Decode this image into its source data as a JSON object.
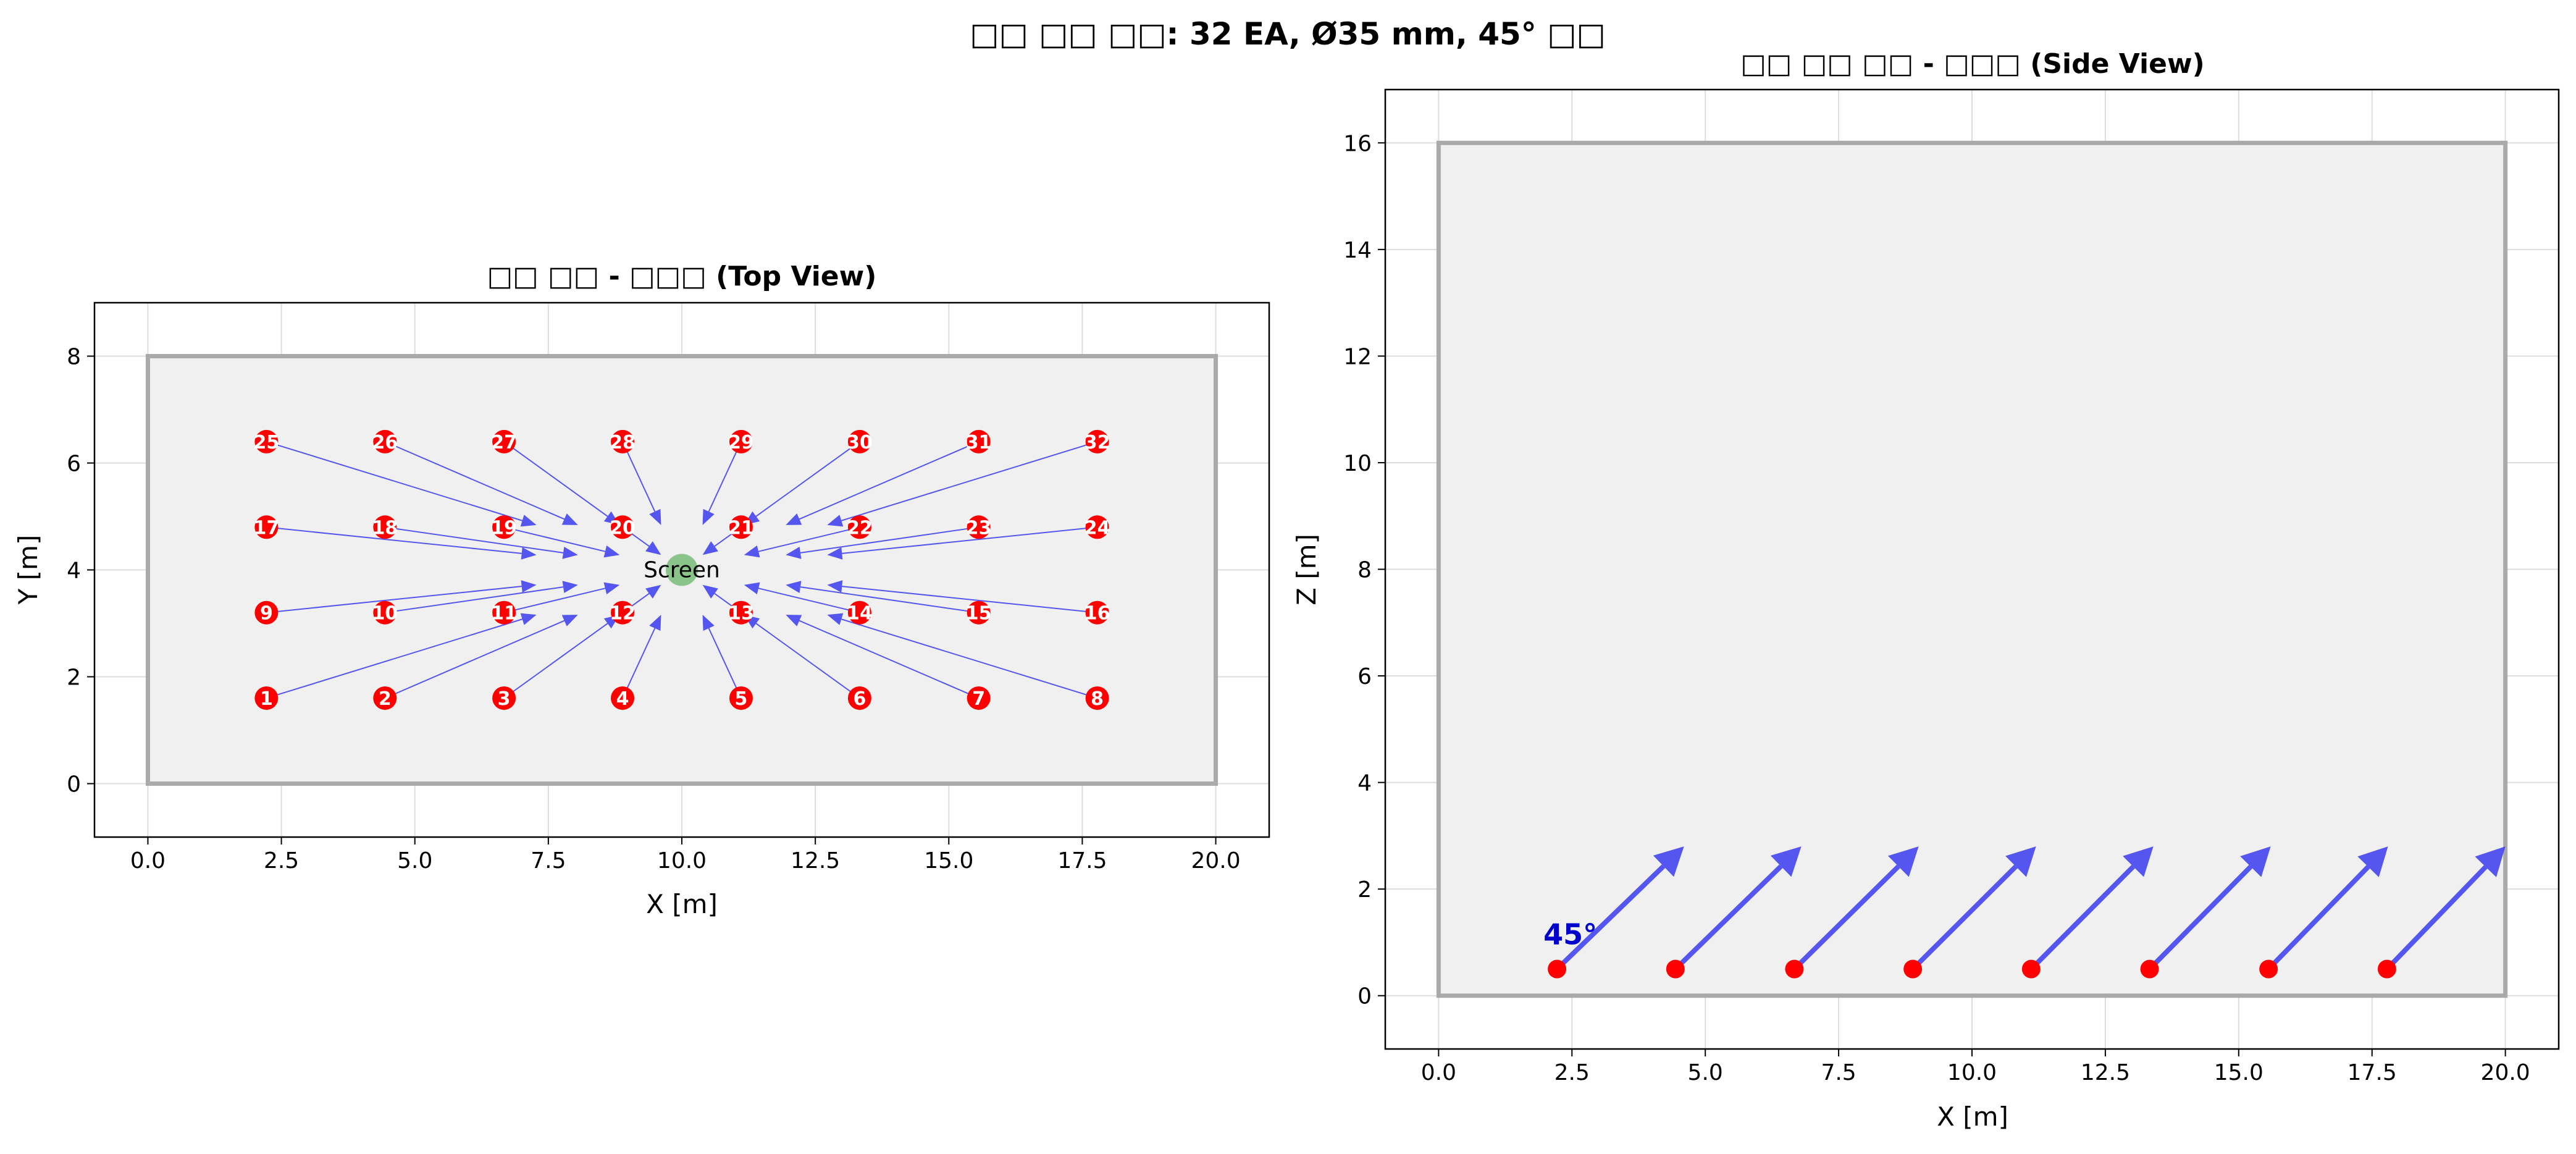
{
  "figure": {
    "suptitle": "□□ □□ □□: 32 EA, Ø35 mm, 45° □□"
  },
  "chart_data": [
    {
      "type": "scatter",
      "title": "□□ □□ - □□□ (Top View)",
      "xlabel": "X [m]",
      "ylabel": "Y [m]",
      "xlim": [
        -1,
        21
      ],
      "ylim": [
        -1,
        9
      ],
      "xticks": [
        0.0,
        2.5,
        5.0,
        7.5,
        10.0,
        12.5,
        15.0,
        17.5,
        20.0
      ],
      "xtick_labels": [
        "0.0",
        "2.5",
        "5.0",
        "7.5",
        "10.0",
        "12.5",
        "15.0",
        "17.5",
        "20.0"
      ],
      "yticks": [
        0,
        2,
        4,
        6,
        8
      ],
      "ytick_labels": [
        "0",
        "2",
        "4",
        "6",
        "8"
      ],
      "grid": true,
      "room": {
        "x0": 0,
        "y0": 0,
        "x1": 20,
        "y1": 8,
        "fill": "#f0f0f0",
        "edge": "#aaaaaa"
      },
      "screen": {
        "label": "Screen",
        "x": 10,
        "y": 4,
        "color": "#7fbf7f"
      },
      "nozzle_color": "#ff0000",
      "arrow_color": "#3a3aee",
      "aim_fraction": 0.65,
      "points": [
        {
          "id": "1",
          "x": 2.22,
          "y": 1.6
        },
        {
          "id": "2",
          "x": 4.44,
          "y": 1.6
        },
        {
          "id": "3",
          "x": 6.67,
          "y": 1.6
        },
        {
          "id": "4",
          "x": 8.89,
          "y": 1.6
        },
        {
          "id": "5",
          "x": 11.11,
          "y": 1.6
        },
        {
          "id": "6",
          "x": 13.33,
          "y": 1.6
        },
        {
          "id": "7",
          "x": 15.56,
          "y": 1.6
        },
        {
          "id": "8",
          "x": 17.78,
          "y": 1.6
        },
        {
          "id": "9",
          "x": 2.22,
          "y": 3.2
        },
        {
          "id": "10",
          "x": 4.44,
          "y": 3.2
        },
        {
          "id": "11",
          "x": 6.67,
          "y": 3.2
        },
        {
          "id": "12",
          "x": 8.89,
          "y": 3.2
        },
        {
          "id": "13",
          "x": 11.11,
          "y": 3.2
        },
        {
          "id": "14",
          "x": 13.33,
          "y": 3.2
        },
        {
          "id": "15",
          "x": 15.56,
          "y": 3.2
        },
        {
          "id": "16",
          "x": 17.78,
          "y": 3.2
        },
        {
          "id": "17",
          "x": 2.22,
          "y": 4.8
        },
        {
          "id": "18",
          "x": 4.44,
          "y": 4.8
        },
        {
          "id": "19",
          "x": 6.67,
          "y": 4.8
        },
        {
          "id": "20",
          "x": 8.89,
          "y": 4.8
        },
        {
          "id": "21",
          "x": 11.11,
          "y": 4.8
        },
        {
          "id": "22",
          "x": 13.33,
          "y": 4.8
        },
        {
          "id": "23",
          "x": 15.56,
          "y": 4.8
        },
        {
          "id": "24",
          "x": 17.78,
          "y": 4.8
        },
        {
          "id": "25",
          "x": 2.22,
          "y": 6.4
        },
        {
          "id": "26",
          "x": 4.44,
          "y": 6.4
        },
        {
          "id": "27",
          "x": 6.67,
          "y": 6.4
        },
        {
          "id": "28",
          "x": 8.89,
          "y": 6.4
        },
        {
          "id": "29",
          "x": 11.11,
          "y": 6.4
        },
        {
          "id": "30",
          "x": 13.33,
          "y": 6.4
        },
        {
          "id": "31",
          "x": 15.56,
          "y": 6.4
        },
        {
          "id": "32",
          "x": 17.78,
          "y": 6.4
        }
      ]
    },
    {
      "type": "scatter",
      "title": "□□ □□ □□ - □□□ (Side View)",
      "xlabel": "X [m]",
      "ylabel": "Z [m]",
      "xlim": [
        -1,
        21
      ],
      "ylim": [
        -1,
        17
      ],
      "xticks": [
        0.0,
        2.5,
        5.0,
        7.5,
        10.0,
        12.5,
        15.0,
        17.5,
        20.0
      ],
      "xtick_labels": [
        "0.0",
        "2.5",
        "5.0",
        "7.5",
        "10.0",
        "12.5",
        "15.0",
        "17.5",
        "20.0"
      ],
      "yticks": [
        0,
        2,
        4,
        6,
        8,
        10,
        12,
        14,
        16
      ],
      "ytick_labels": [
        "0",
        "2",
        "4",
        "6",
        "8",
        "10",
        "12",
        "14",
        "16"
      ],
      "grid": true,
      "room": {
        "x0": 0,
        "y0": 0,
        "x1": 20,
        "y1": 16,
        "fill": "#f0f0f0",
        "edge": "#aaaaaa"
      },
      "nozzle_color": "#ff0000",
      "arrow_color": "#3a3aee",
      "angle_label": "45°",
      "angle_label_color": "#0000cc",
      "points": [
        {
          "x": 2.22,
          "z": 0.5
        },
        {
          "x": 4.44,
          "z": 0.5
        },
        {
          "x": 6.67,
          "z": 0.5
        },
        {
          "x": 8.89,
          "z": 0.5
        },
        {
          "x": 11.11,
          "z": 0.5
        },
        {
          "x": 13.33,
          "z": 0.5
        },
        {
          "x": 15.56,
          "z": 0.5
        },
        {
          "x": 17.78,
          "z": 0.5
        }
      ],
      "arrow_tips": [
        {
          "x": 4.6,
          "z": 2.8
        },
        {
          "x": 6.8,
          "z": 2.8
        },
        {
          "x": 9.0,
          "z": 2.8
        },
        {
          "x": 11.2,
          "z": 2.8
        },
        {
          "x": 13.4,
          "z": 2.8
        },
        {
          "x": 15.6,
          "z": 2.8
        },
        {
          "x": 17.8,
          "z": 2.8
        },
        {
          "x": 20.0,
          "z": 2.8
        }
      ]
    }
  ]
}
